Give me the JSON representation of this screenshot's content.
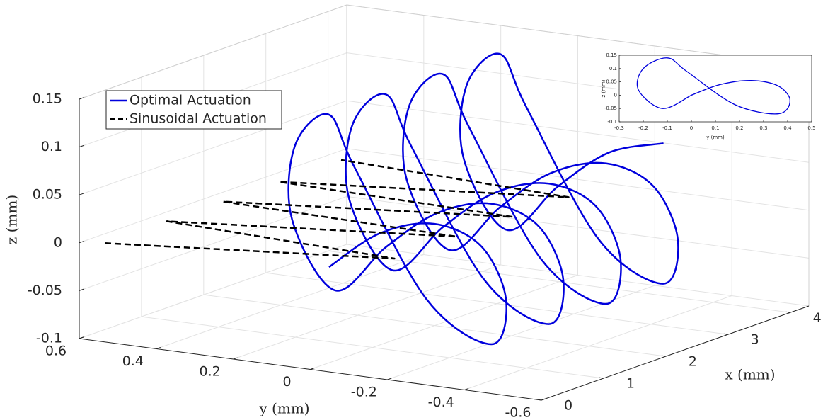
{
  "chart_data": [
    {
      "type": "line3d",
      "xlabel": "x (mm)",
      "ylabel": "y (mm)",
      "zlabel": "z (mm)",
      "xlim": [
        0,
        4.3
      ],
      "ylim": [
        -0.6,
        0.6
      ],
      "zlim": [
        -0.1,
        0.15
      ],
      "xticks": [
        0,
        1,
        2,
        3,
        4
      ],
      "yticks": [
        -0.6,
        -0.4,
        -0.2,
        0,
        0.2,
        0.4,
        0.6
      ],
      "zticks": [
        -0.1,
        -0.05,
        0,
        0.05,
        0.1,
        0.15
      ],
      "grid": true,
      "legend": "northwest",
      "series": [
        {
          "name": "Optimal Actuation",
          "color": "#0000dd",
          "dashed": false,
          "x": [
            0.3,
            0.38,
            0.45,
            0.53,
            0.61,
            0.68,
            0.76,
            0.84,
            0.91,
            0.99,
            1.07,
            1.14,
            1.22,
            1.3,
            1.37,
            1.45,
            1.53,
            1.6,
            1.68,
            1.76,
            1.83,
            1.91,
            1.99,
            2.06,
            2.14,
            2.22,
            2.29,
            2.37,
            2.45,
            2.52,
            2.6,
            2.68,
            2.75,
            2.83,
            2.91,
            2.98,
            3.06,
            3.14,
            3.21,
            3.29,
            3.37,
            3.44,
            3.52,
            3.6,
            3.67,
            3.75,
            3.83,
            3.9,
            3.98,
            4.06,
            4.13
          ],
          "y": [
            0,
            -0.12,
            -0.25,
            -0.36,
            -0.41,
            -0.36,
            -0.18,
            0.02,
            0.1,
            0.2,
            0.22,
            0.12,
            0,
            -0.12,
            -0.25,
            -0.36,
            -0.41,
            -0.36,
            -0.18,
            0.02,
            0.1,
            0.2,
            0.22,
            0.12,
            0,
            -0.12,
            -0.25,
            -0.36,
            -0.41,
            -0.36,
            -0.18,
            0.02,
            0.1,
            0.2,
            0.22,
            0.12,
            0,
            -0.12,
            -0.25,
            -0.36,
            -0.41,
            -0.36,
            -0.18,
            0.02,
            0.1,
            0.2,
            0.22,
            0.12,
            0,
            -0.12,
            -0.25
          ],
          "z": [
            0,
            0.04,
            0.055,
            0.035,
            -0.02,
            -0.07,
            -0.035,
            0.09,
            0.14,
            0.1,
            0.02,
            -0.05,
            0,
            0.04,
            0.055,
            0.035,
            -0.02,
            -0.07,
            -0.035,
            0.09,
            0.14,
            0.1,
            0.02,
            -0.05,
            0,
            0.04,
            0.055,
            0.035,
            -0.02,
            -0.07,
            -0.035,
            0.09,
            0.14,
            0.1,
            0.02,
            -0.05,
            0,
            0.04,
            0.055,
            0.035,
            -0.02,
            -0.07,
            -0.035,
            0.09,
            0.14,
            0.1,
            0.02,
            -0.05,
            0,
            0.04,
            0.055
          ]
        },
        {
          "name": "Sinusoidal Actuation",
          "color": "#000000",
          "dashed": true,
          "x": [
            0.1,
            0.3,
            1.1,
            1.3,
            2.0,
            2.2,
            2.9,
            3.1,
            3.9
          ],
          "y": [
            0.55,
            -0.17,
            0.55,
            -0.17,
            0.55,
            -0.17,
            0.55,
            -0.17,
            0.55
          ],
          "z": [
            0,
            0.018,
            0,
            0.018,
            0,
            0.018,
            0,
            0.018,
            0
          ]
        }
      ]
    },
    {
      "type": "line",
      "xlabel": "y (mm)",
      "ylabel": "z (mm)",
      "xlim": [
        -0.3,
        0.5
      ],
      "ylim": [
        -0.1,
        0.15
      ],
      "xticks": [
        -0.3,
        -0.2,
        -0.1,
        0,
        0.1,
        0.2,
        0.3,
        0.4,
        0.5
      ],
      "yticks": [
        -0.1,
        -0.05,
        0,
        0.05,
        0.1,
        0.15
      ],
      "grid": false,
      "series": [
        {
          "color": "#0000dd",
          "x": [
            0,
            0.12,
            0.25,
            0.36,
            0.41,
            0.36,
            0.18,
            -0.02,
            -0.1,
            -0.2,
            -0.22,
            -0.12,
            0
          ],
          "values": [
            0,
            0.04,
            0.055,
            0.035,
            -0.02,
            -0.07,
            -0.035,
            0.09,
            0.14,
            0.1,
            0.02,
            -0.05,
            0
          ]
        }
      ]
    }
  ]
}
